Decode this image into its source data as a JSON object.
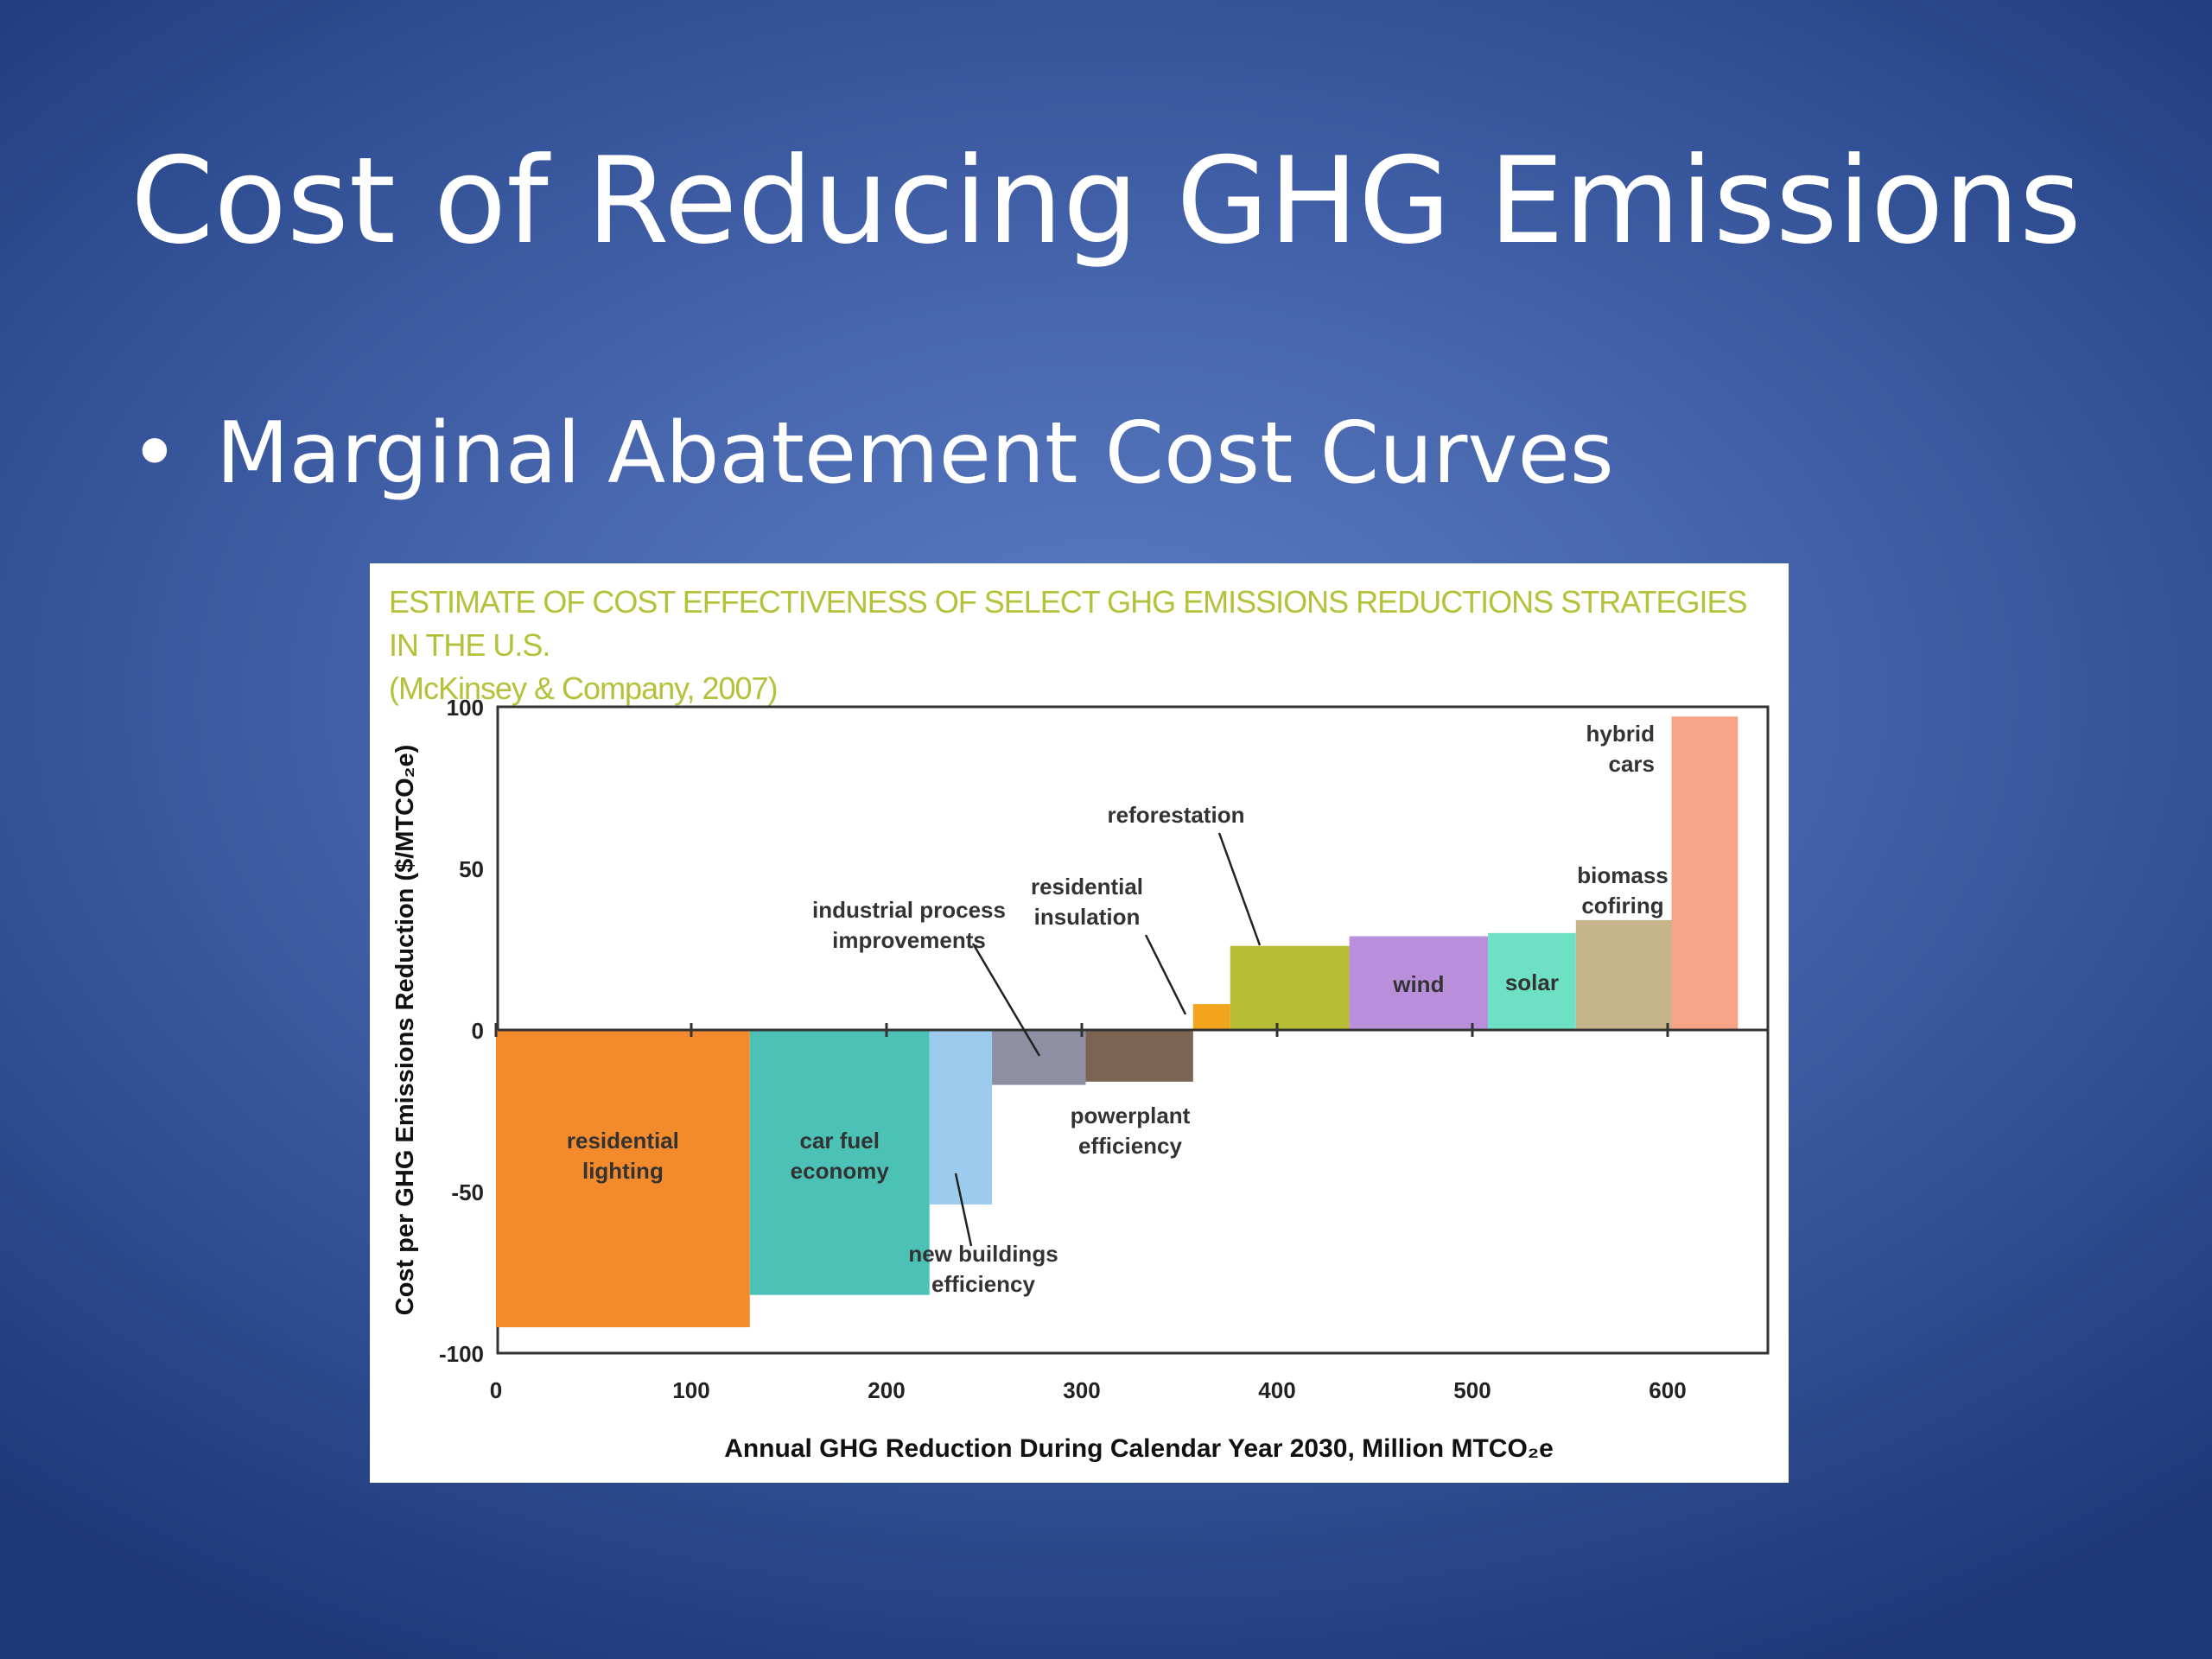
{
  "slide": {
    "title": "Cost of Reducing GHG Emissions",
    "bullet": "Marginal Abatement Cost Curves",
    "bullet_symbol": "•"
  },
  "figure": {
    "caption_line1": "ESTIMATE OF COST EFFECTIVENESS OF SELECT GHG EMISSIONS REDUCTIONS STRATEGIES IN THE U.S.",
    "caption_line2": "(McKinsey & Company, 2007)"
  },
  "chart_data": {
    "type": "bar",
    "variant": "marginal-abatement-cost-curve",
    "xlabel": "Annual GHG Reduction During Calendar Year 2030, Million MTCO₂e",
    "ylabel": "Cost per GHG Emissions Reduction ($/MTCO₂e)",
    "xlim": [
      0,
      650
    ],
    "ylim": [
      -100,
      100
    ],
    "xticks": [
      0,
      100,
      200,
      300,
      400,
      500,
      600
    ],
    "yticks": [
      -100,
      -50,
      0,
      50,
      100
    ],
    "grid": false,
    "bars": [
      {
        "label": "residential lighting",
        "x0": 0,
        "x1": 130,
        "value": -92,
        "color": "#f38a2c",
        "label_pos": "inside"
      },
      {
        "label": "car fuel economy",
        "x0": 130,
        "x1": 222,
        "value": -82,
        "color": "#4cc2b6",
        "label_pos": "inside"
      },
      {
        "label": "new buildings efficiency",
        "x0": 222,
        "x1": 254,
        "value": -54,
        "color": "#9ccbee",
        "label_pos": "callout"
      },
      {
        "label": "industrial process improvements",
        "x0": 254,
        "x1": 302,
        "value": -17,
        "color": "#8f8fa3",
        "label_pos": "callout"
      },
      {
        "label": "powerplant efficiency",
        "x0": 302,
        "x1": 357,
        "value": -16,
        "color": "#7b6452",
        "label_pos": "below"
      },
      {
        "label": "residential insulation",
        "x0": 357,
        "x1": 376,
        "value": 8,
        "color": "#f2a51c",
        "label_pos": "callout"
      },
      {
        "label": "reforestation",
        "x0": 376,
        "x1": 437,
        "value": 26,
        "color": "#b6bd35",
        "label_pos": "callout"
      },
      {
        "label": "wind",
        "x0": 437,
        "x1": 508,
        "value": 29,
        "color": "#b98fdc",
        "label_pos": "inside"
      },
      {
        "label": "solar",
        "x0": 508,
        "x1": 553,
        "value": 30,
        "color": "#6ee0c4",
        "label_pos": "inside"
      },
      {
        "label": "biomass cofiring",
        "x0": 553,
        "x1": 602,
        "value": 34,
        "color": "#c6b58a",
        "label_pos": "above"
      },
      {
        "label": "hybrid cars",
        "x0": 602,
        "x1": 636,
        "value": 97,
        "color": "#f7a486",
        "label_pos": "above"
      }
    ]
  }
}
